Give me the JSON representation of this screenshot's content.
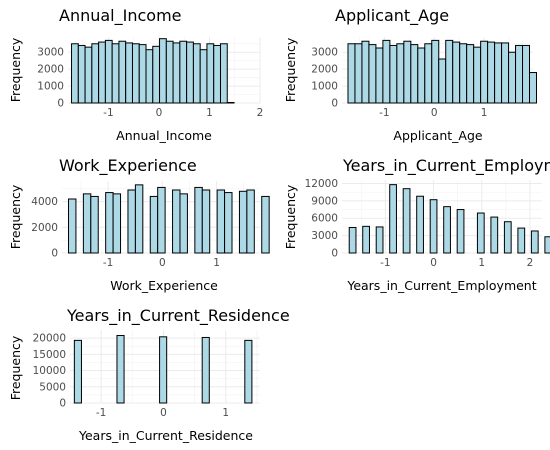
{
  "chart_data": [
    {
      "type": "bar",
      "title": "Annual_Income",
      "xlabel": "Annual_Income",
      "ylabel": "Frequency",
      "xlim": [
        -1.8,
        2.0
      ],
      "ylim": [
        0,
        3900
      ],
      "xticks": [
        -1,
        0,
        1,
        2
      ],
      "xtick_labels": [
        "-1",
        "0",
        "1",
        "2"
      ],
      "yticks": [
        0,
        1000,
        2000,
        3000
      ],
      "ytick_labels": [
        "0",
        "1000",
        "2000",
        "3000"
      ],
      "bin_start": -1.73,
      "bin_width": 0.134,
      "values": [
        3500,
        3400,
        3300,
        3500,
        3600,
        3700,
        3500,
        3650,
        3550,
        3500,
        3450,
        3150,
        3350,
        3800,
        3650,
        3550,
        3650,
        3600,
        3500,
        3150,
        3500,
        3400,
        3500,
        30
      ]
    },
    {
      "type": "bar",
      "title": "Applicant_Age",
      "xlabel": "Applicant_Age",
      "ylabel": "Frequency",
      "xlim": [
        -1.85,
        1.98
      ],
      "ylim": [
        0,
        3900
      ],
      "xticks": [
        -1,
        0,
        1
      ],
      "xtick_labels": [
        "-1",
        "0",
        "1"
      ],
      "yticks": [
        0,
        1000,
        2000,
        3000
      ],
      "ytick_labels": [
        "0",
        "1000",
        "2000",
        "3000"
      ],
      "bin_start": -1.73,
      "bin_width": 0.14,
      "values": [
        3500,
        3500,
        3650,
        3450,
        3250,
        3700,
        3400,
        3500,
        3650,
        3450,
        3250,
        3500,
        3700,
        2600,
        3700,
        3600,
        3500,
        3450,
        3300,
        3650,
        3600,
        3550,
        3550,
        3000,
        3400,
        3400,
        1800
      ]
    },
    {
      "type": "bar",
      "title": "Work_Experience",
      "xlabel": "Work_Experience",
      "ylabel": "Frequency",
      "xlim": [
        -1.85,
        1.8
      ],
      "ylim": [
        0,
        5600
      ],
      "xticks": [
        -1,
        0,
        1
      ],
      "xtick_labels": [
        "-1",
        "0",
        "1"
      ],
      "yticks": [
        0,
        2000,
        4000
      ],
      "ytick_labels": [
        "0",
        "2000",
        "4000"
      ],
      "bin_start": -1.73,
      "bin_width": 0.137,
      "values": [
        4200,
        0,
        4600,
        4400,
        0,
        4700,
        4600,
        0,
        4900,
        5300,
        0,
        4400,
        5100,
        0,
        4900,
        4600,
        0,
        5100,
        4900,
        0,
        4900,
        4700,
        0,
        4800,
        4900,
        0,
        4400
      ]
    },
    {
      "type": "bar",
      "title": "Years_in_Current_Employment",
      "xlabel": "Years_in_Current_Employment",
      "ylabel": "Frequency",
      "xlim": [
        -1.9,
        2.25
      ],
      "ylim": [
        0,
        12600
      ],
      "xticks": [
        -1,
        0,
        1,
        2
      ],
      "xtick_labels": [
        "-1",
        "0",
        "1",
        "2"
      ],
      "yticks": [
        0,
        3000,
        6000,
        9000,
        12000
      ],
      "ytick_labels": [
        "0",
        "3000",
        "6000",
        "9000",
        "12000"
      ],
      "bin_start": -1.75,
      "bin_width": 0.14,
      "values": [
        4400,
        0,
        4600,
        0,
        4500,
        0,
        11800,
        0,
        11100,
        0,
        9800,
        0,
        9200,
        0,
        8000,
        0,
        7500,
        0,
        0,
        6900,
        0,
        6200,
        0,
        5400,
        0,
        4300,
        0,
        3800,
        0,
        2800
      ]
    },
    {
      "type": "bar",
      "title": "Years_in_Current_Residence",
      "xlabel": "Years_in_Current_Residence",
      "ylabel": "Frequency",
      "xlim": [
        -1.5,
        1.55
      ],
      "ylim": [
        0,
        22500
      ],
      "xticks": [
        -1,
        0,
        1
      ],
      "xtick_labels": [
        "-1",
        "0",
        "1"
      ],
      "yticks": [
        0,
        5000,
        10000,
        15000,
        20000
      ],
      "ytick_labels": [
        "0",
        "5000",
        "10000",
        "15000",
        "20000"
      ],
      "bin_start": -1.43,
      "bin_width": 0.114,
      "values": [
        19300,
        0,
        0,
        0,
        0,
        0,
        20800,
        0,
        0,
        0,
        0,
        0,
        20400,
        0,
        0,
        0,
        0,
        0,
        20200,
        0,
        0,
        0,
        0,
        0,
        19300
      ]
    }
  ]
}
